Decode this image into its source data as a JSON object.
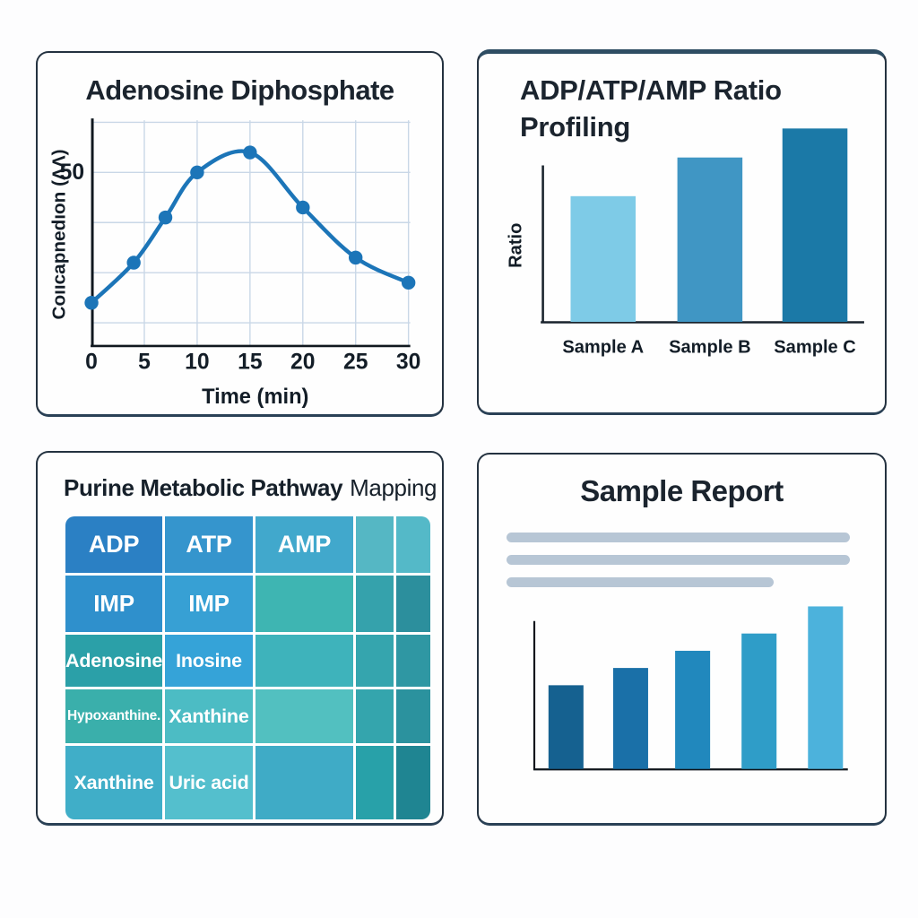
{
  "page": {
    "background": "#fdfdfe",
    "text_color": "#18222c"
  },
  "panels": {
    "adenosine_line": {
      "title": "Adenosine Diphosphate"
    },
    "ratio_profile": {
      "title_line1": "ADP/ATP/AMP Ratio",
      "title_line2": "Profiling"
    },
    "pathway_map": {
      "title_main": "Purine Metabolic Pathway",
      "title_suffix": "Mapping"
    },
    "sample_report": {
      "title": "Sample Report"
    }
  },
  "chart_data": [
    {
      "id": "adenosine_line",
      "type": "line",
      "title": "Adenosine Diphosphate",
      "xlabel": "Time (min)",
      "ylabel": "Coııcapnedıon (ΛΛ)",
      "x": [
        0,
        4,
        7,
        10,
        15,
        20,
        25,
        30
      ],
      "y": [
        24,
        32,
        41,
        50,
        54,
        43,
        33,
        28
      ],
      "xticks": [
        0,
        5,
        10,
        15,
        20,
        25,
        30
      ],
      "ytick_values": [
        50
      ],
      "ytick_labels": [
        "50"
      ],
      "gridline_values": [
        60,
        50,
        40,
        30,
        20
      ],
      "xlim": [
        0,
        30
      ],
      "ylim": [
        15,
        62
      ],
      "grid": true,
      "legend": "none",
      "line_color": "#1c75b8",
      "marker_color": "#1c75b8",
      "grid_color": "#c9d7e7",
      "axis_color": "#10181f"
    },
    {
      "id": "ratio_profile",
      "type": "bar",
      "title": "ADP/ATP/AMP Ratio Profiling",
      "xlabel": "",
      "ylabel": "Ratio",
      "categories": [
        "Sample A",
        "Sample B",
        "Sample C"
      ],
      "values": [
        0.65,
        0.85,
        1.0
      ],
      "ylim": [
        0,
        1.0
      ],
      "grid": false,
      "legend": "none",
      "bar_colors": [
        "#7ecbe7",
        "#4096c4",
        "#1b79a7"
      ],
      "axis_color": "#18222c"
    },
    {
      "id": "pathway_map",
      "type": "heatmap",
      "title": "Purine Metabolic Pathway Mapping",
      "cell_labels": [
        [
          "ADP",
          "ATP",
          "AMP",
          "",
          ""
        ],
        [
          "IMP",
          "IMP",
          "",
          "",
          ""
        ],
        [
          "Adenosine",
          "Inosine",
          "",
          "",
          ""
        ],
        [
          "Hypoxanthine.",
          "Xanthine",
          "",
          "",
          ""
        ],
        [
          "Xanthine",
          "Uric acid",
          "",
          "",
          ""
        ]
      ],
      "cell_colors": [
        [
          "#2b80c4",
          "#3595cd",
          "#41a8cc",
          "#55b7c4",
          "#54b9c8"
        ],
        [
          "#2f90cc",
          "#37a0d4",
          "#3eb5b2",
          "#35a2ac",
          "#2c8f9d"
        ],
        [
          "#2ba0a8",
          "#35a3d8",
          "#3eb3bb",
          "#35a5ae",
          "#2f97a3"
        ],
        [
          "#3aafab",
          "#4cbcc4",
          "#52c0c0",
          "#34a5ad",
          "#2b929e"
        ],
        [
          "#40aec8",
          "#54bfcd",
          "#3fabc6",
          "#28a1a9",
          "#1f8592"
        ]
      ]
    },
    {
      "id": "sample_report",
      "type": "bar",
      "title": "Sample Report",
      "xlabel": "",
      "ylabel": "",
      "categories": [
        "",
        "",
        "",
        "",
        ""
      ],
      "values": [
        34,
        41,
        48,
        55,
        66
      ],
      "ylim": [
        0,
        70
      ],
      "grid": false,
      "legend": "none",
      "placeholder_text_lines": 3,
      "bar_colors": [
        "#156190",
        "#1a70a8",
        "#2188bd",
        "#2f9dc8",
        "#4cb2dc"
      ],
      "axis_color": "#10161c"
    }
  ]
}
